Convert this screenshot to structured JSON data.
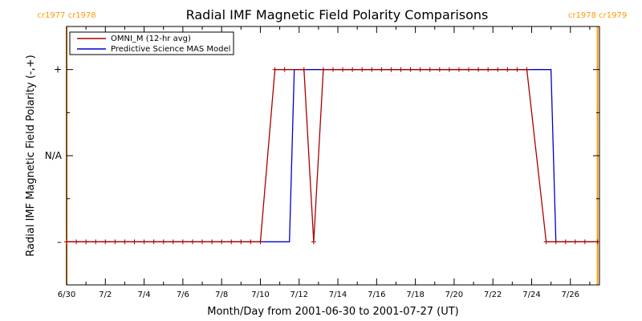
{
  "chart_data": {
    "type": "line",
    "title": "Radial IMF Magnetic Field Polarity Comparisons",
    "xlabel": "Month/Day from 2001-06-30 to 2001-07-27 (UT)",
    "ylabel": "Radial IMF Magnetic Field Polarity (-,+)",
    "xlim": [
      0,
      27.5
    ],
    "ylim": [
      -1.5,
      1.5
    ],
    "x_ticks": [
      {
        "day": 0,
        "label": "6/30"
      },
      {
        "day": 2,
        "label": "7/2"
      },
      {
        "day": 4,
        "label": "7/4"
      },
      {
        "day": 6,
        "label": "7/6"
      },
      {
        "day": 8,
        "label": "7/8"
      },
      {
        "day": 10,
        "label": "7/10"
      },
      {
        "day": 12,
        "label": "7/12"
      },
      {
        "day": 14,
        "label": "7/14"
      },
      {
        "day": 16,
        "label": "7/16"
      },
      {
        "day": 18,
        "label": "7/18"
      },
      {
        "day": 20,
        "label": "7/20"
      },
      {
        "day": 22,
        "label": "7/22"
      },
      {
        "day": 24,
        "label": "7/24"
      },
      {
        "day": 26,
        "label": "7/26"
      }
    ],
    "y_ticks": [
      {
        "value": 1,
        "label": "+"
      },
      {
        "value": 0,
        "label": "N/A"
      },
      {
        "value": -1,
        "label": "–"
      }
    ],
    "carrington_markers": [
      {
        "day": 0,
        "labels": [
          "cr1977",
          "cr1978"
        ]
      },
      {
        "day": 27.4,
        "labels": [
          "cr1978",
          "cr1979"
        ]
      }
    ],
    "series": [
      {
        "name": "OMNI_M (12-hr avg)",
        "color": "#aa0000",
        "x": [
          0,
          0.5,
          1,
          1.5,
          2,
          2.5,
          3,
          3.5,
          4,
          4.5,
          5,
          5.5,
          6,
          6.5,
          7,
          7.5,
          8,
          8.5,
          9,
          9.5,
          10,
          10.75,
          11.25,
          12.25,
          12.75,
          13.25,
          13.75,
          14.25,
          14.75,
          15.25,
          15.75,
          16.25,
          16.75,
          17.25,
          17.75,
          18.25,
          18.75,
          19.25,
          19.75,
          20.25,
          20.75,
          21.25,
          21.75,
          22.25,
          22.75,
          23.25,
          23.75,
          24.75,
          25.25,
          25.75,
          26.25,
          26.75,
          27.4
        ],
        "values": [
          -1,
          -1,
          -1,
          -1,
          -1,
          -1,
          -1,
          -1,
          -1,
          -1,
          -1,
          -1,
          -1,
          -1,
          -1,
          -1,
          -1,
          -1,
          -1,
          -1,
          -1,
          1,
          1,
          1,
          -1,
          1,
          1,
          1,
          1,
          1,
          1,
          1,
          1,
          1,
          1,
          1,
          1,
          1,
          1,
          1,
          1,
          1,
          1,
          1,
          1,
          1,
          1,
          -1,
          -1,
          -1,
          -1,
          -1,
          -1
        ],
        "markers": true
      },
      {
        "name": "Predictive Science MAS Model",
        "color": "#0000cc",
        "x": [
          0,
          11.5,
          11.75,
          25.0,
          25.25,
          27.4
        ],
        "values": [
          -1,
          -1,
          1,
          1,
          -1,
          -1
        ],
        "markers": false
      }
    ],
    "legend": "top-left",
    "grid": false
  }
}
